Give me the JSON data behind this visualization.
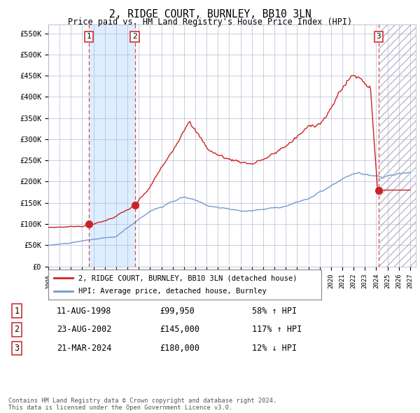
{
  "title": "2, RIDGE COURT, BURNLEY, BB10 3LN",
  "subtitle": "Price paid vs. HM Land Registry's House Price Index (HPI)",
  "ylim": [
    0,
    570000
  ],
  "yticks": [
    0,
    50000,
    100000,
    150000,
    200000,
    250000,
    300000,
    350000,
    400000,
    450000,
    500000,
    550000
  ],
  "ytick_labels": [
    "£0",
    "£50K",
    "£100K",
    "£150K",
    "£200K",
    "£250K",
    "£300K",
    "£350K",
    "£400K",
    "£450K",
    "£500K",
    "£550K"
  ],
  "xlim_start": 1995.0,
  "xlim_end": 2027.5,
  "xtick_years": [
    1995,
    1996,
    1997,
    1998,
    1999,
    2000,
    2001,
    2002,
    2003,
    2004,
    2005,
    2006,
    2007,
    2008,
    2009,
    2010,
    2011,
    2012,
    2013,
    2014,
    2015,
    2016,
    2017,
    2018,
    2019,
    2020,
    2021,
    2022,
    2023,
    2024,
    2025,
    2026,
    2027
  ],
  "sale1_date": 1998.61,
  "sale1_price": 99950,
  "sale2_date": 2002.65,
  "sale2_price": 145000,
  "sale3_date": 2024.22,
  "sale3_price": 180000,
  "hpi_color": "#7799cc",
  "price_color": "#cc2222",
  "sale_dot_color": "#cc2222",
  "grid_color": "#aaaacc",
  "bg_color": "#ffffff",
  "shaded_region_color": "#ddeeff",
  "legend_entries": [
    "2, RIDGE COURT, BURNLEY, BB10 3LN (detached house)",
    "HPI: Average price, detached house, Burnley"
  ],
  "table_rows": [
    [
      "1",
      "11-AUG-1998",
      "£99,950",
      "58% ↑ HPI"
    ],
    [
      "2",
      "23-AUG-2002",
      "£145,000",
      "117% ↑ HPI"
    ],
    [
      "3",
      "21-MAR-2024",
      "£180,000",
      "12% ↓ HPI"
    ]
  ],
  "footer": "Contains HM Land Registry data © Crown copyright and database right 2024.\nThis data is licensed under the Open Government Licence v3.0."
}
